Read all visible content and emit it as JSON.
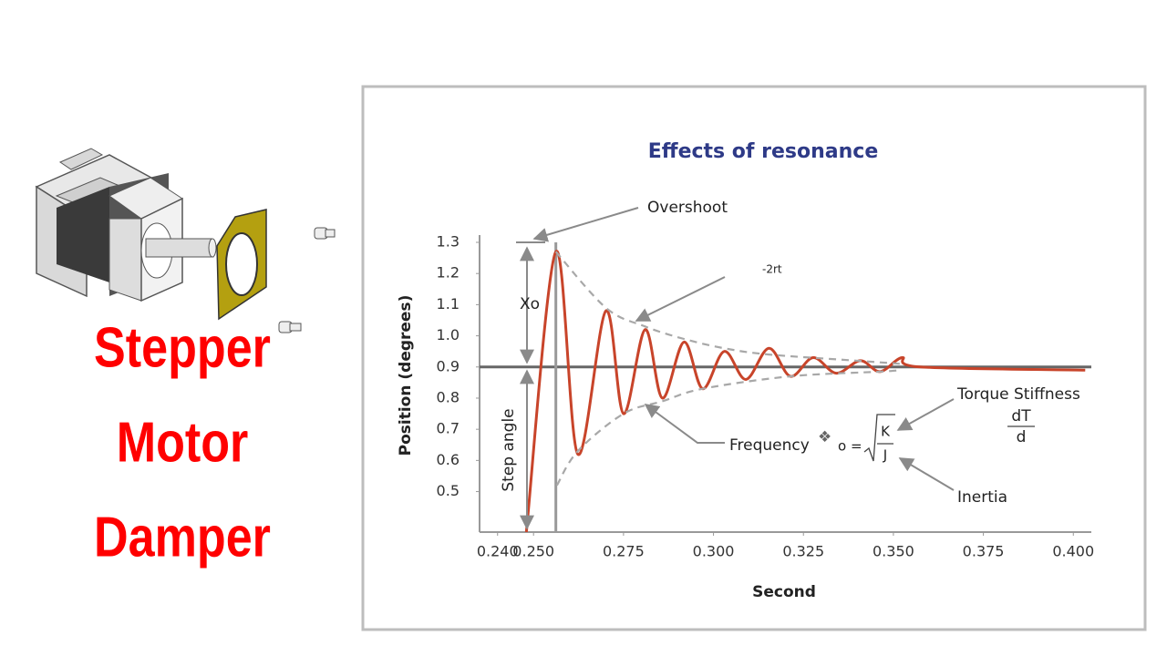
{
  "slide": {
    "title_lines": [
      "Stepper",
      "Motor",
      "Damper"
    ]
  },
  "chart_data": {
    "type": "line",
    "title": "Effects of resonance",
    "x_label": "Second",
    "y_label": "Position (degrees)",
    "xlim": [
      0.235,
      0.405
    ],
    "ylim": [
      0.37,
      1.3
    ],
    "xticks": [
      {
        "value": 0.24,
        "label": "0.240"
      },
      {
        "value": 0.25,
        "label": "0.250"
      },
      {
        "value": 0.275,
        "label": "0.275"
      },
      {
        "value": 0.3,
        "label": "0.300"
      },
      {
        "value": 0.325,
        "label": "0.325"
      },
      {
        "value": 0.35,
        "label": "0.350"
      },
      {
        "value": 0.375,
        "label": "0.375"
      },
      {
        "value": 0.4,
        "label": "0.400"
      }
    ],
    "yticks": [
      0.5,
      0.6,
      0.7,
      0.8,
      0.9,
      {
        "value": 1,
        "label": "1.0"
      },
      1.1,
      1.2,
      1.3
    ],
    "series": [
      {
        "color": "#c8442a",
        "dashed": false,
        "x": [
          0.248,
          0.2562,
          0.2623,
          0.2701,
          0.275,
          0.281,
          0.2858,
          0.2918,
          0.297,
          0.303,
          0.309,
          0.3154,
          0.3214,
          0.3277,
          0.3341,
          0.3408,
          0.3463,
          0.3524,
          0.3575,
          0.4033
        ],
        "values": [
          0.37,
          1.27,
          0.62,
          1.08,
          0.75,
          1.02,
          0.8,
          0.98,
          0.83,
          0.95,
          0.86,
          0.96,
          0.87,
          0.93,
          0.88,
          0.92,
          0.885,
          0.93,
          0.9,
          0.89
        ]
      },
      {
        "color": "#a8a8a8",
        "dashed": true,
        "x": [
          0.2562,
          0.2701,
          0.281,
          0.2918,
          0.303,
          0.3154,
          0.34,
          0.352
        ],
        "values": [
          1.27,
          1.09,
          1.03,
          0.99,
          0.96,
          0.94,
          0.92,
          0.91
        ]
      },
      {
        "color": "#a8a8a8",
        "dashed": true,
        "x": [
          0.2565,
          0.2623,
          0.275,
          0.2858,
          0.297,
          0.3214,
          0.3463,
          0.352
        ],
        "values": [
          0.52,
          0.63,
          0.75,
          0.79,
          0.83,
          0.87,
          0.885,
          0.89
        ]
      }
    ],
    "reference_lines": {
      "y": 0.9,
      "x": 0.2562
    },
    "annotations": {
      "overshoot": "Overshoot",
      "decay": "-2rt",
      "amplitude": "Xo",
      "step_angle": "Step angle",
      "frequency": "Frequency",
      "omega": "❖",
      "omega_sub": "o =",
      "numerator_k": "K",
      "denominator_j": "J",
      "torque_stiffness": "Torque Stiffness",
      "dt": "dT",
      "d": "d",
      "inertia": "Inertia"
    }
  }
}
